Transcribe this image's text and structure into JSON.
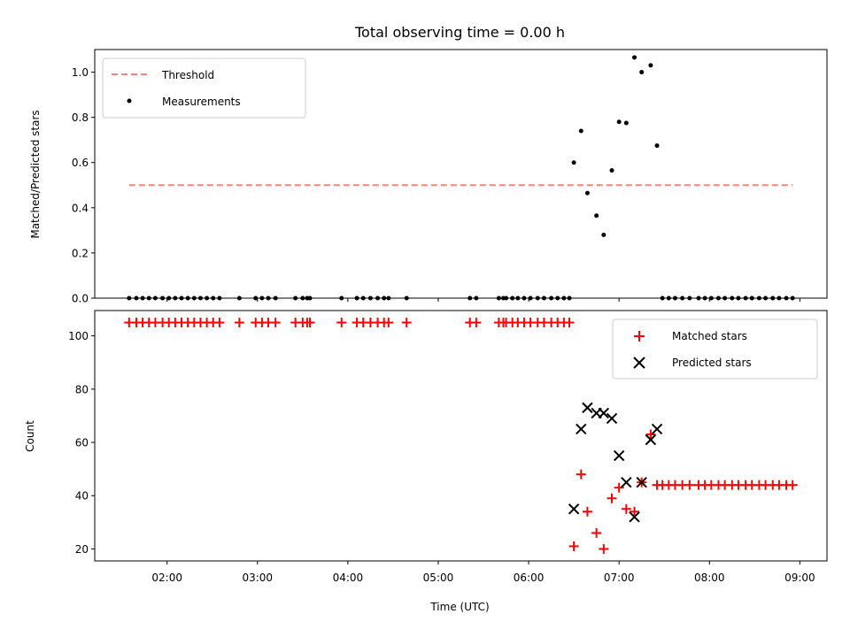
{
  "chart_data": {
    "title": "Total observing time = 0.00 h",
    "xlabel": "Time (UTC)",
    "xticks": [
      "02:00",
      "03:00",
      "04:00",
      "05:00",
      "06:00",
      "07:00",
      "08:00",
      "09:00"
    ],
    "xlim_hours": [
      1.2,
      9.3
    ],
    "panels": [
      {
        "type": "scatter",
        "ylabel": "Matched/Predicted stars",
        "ylim": [
          0.0,
          1.1
        ],
        "yticks": [
          "0.0",
          "0.2",
          "0.4",
          "0.6",
          "0.8",
          "1.0"
        ],
        "ytick_values": [
          0.0,
          0.2,
          0.4,
          0.6,
          0.8,
          1.0
        ],
        "legend_position": "upper-left",
        "threshold": {
          "name": "Threshold",
          "value": 0.5,
          "x_range_hours": [
            1.58,
            8.92
          ],
          "color": "#ff7f7f"
        },
        "series": [
          {
            "name": "Measurements",
            "marker": "dot",
            "color": "#000000",
            "x_hours": [
              1.58,
              1.66,
              1.73,
              1.8,
              1.87,
              1.95,
              2.02,
              2.09,
              2.16,
              2.23,
              2.3,
              2.37,
              2.44,
              2.51,
              2.58,
              2.8,
              2.98,
              3.05,
              3.12,
              3.2,
              3.42,
              3.5,
              3.55,
              3.58,
              3.93,
              4.1,
              4.17,
              4.25,
              4.33,
              4.4,
              4.45,
              4.65,
              5.35,
              5.42,
              5.67,
              5.72,
              5.75,
              5.82,
              5.88,
              5.95,
              6.02,
              6.1,
              6.17,
              6.25,
              6.32,
              6.39,
              6.45,
              6.5,
              6.58,
              6.65,
              6.75,
              6.83,
              6.92,
              7.0,
              7.08,
              7.17,
              7.25,
              7.35,
              7.42,
              7.48,
              7.55,
              7.62,
              7.7,
              7.78,
              7.88,
              7.95,
              8.02,
              8.1,
              8.17,
              8.25,
              8.32,
              8.4,
              8.47,
              8.55,
              8.62,
              8.7,
              8.77,
              8.85,
              8.92
            ],
            "y": [
              0,
              0,
              0,
              0,
              0,
              0,
              0,
              0,
              0,
              0,
              0,
              0,
              0,
              0,
              0,
              0,
              0,
              0,
              0,
              0,
              0,
              0,
              0,
              0,
              0,
              0,
              0,
              0,
              0,
              0,
              0,
              0,
              0,
              0,
              0,
              0,
              0,
              0,
              0,
              0,
              0,
              0,
              0,
              0,
              0,
              0,
              0,
              0.6,
              0.74,
              0.465,
              0.365,
              0.28,
              0.565,
              0.78,
              0.775,
              1.065,
              1.0,
              1.03,
              0.675,
              0,
              0,
              0,
              0,
              0,
              0,
              0,
              0,
              0,
              0,
              0,
              0,
              0,
              0,
              0,
              0,
              0,
              0,
              0,
              0
            ]
          }
        ]
      },
      {
        "type": "scatter",
        "ylabel": "Count",
        "ylim": [
          15.5,
          109.5
        ],
        "yticks": [
          "20",
          "40",
          "60",
          "80",
          "100"
        ],
        "ytick_values": [
          20,
          40,
          60,
          80,
          100
        ],
        "legend_position": "upper-right",
        "series": [
          {
            "name": "Matched stars",
            "marker": "plus",
            "color": "#ff0000",
            "x_hours": [
              1.58,
              1.66,
              1.73,
              1.8,
              1.87,
              1.95,
              2.02,
              2.09,
              2.16,
              2.23,
              2.3,
              2.37,
              2.44,
              2.51,
              2.58,
              2.8,
              2.98,
              3.05,
              3.12,
              3.2,
              3.42,
              3.5,
              3.55,
              3.58,
              3.93,
              4.1,
              4.17,
              4.25,
              4.33,
              4.4,
              4.45,
              4.65,
              5.35,
              5.42,
              5.67,
              5.72,
              5.75,
              5.82,
              5.88,
              5.95,
              6.02,
              6.1,
              6.17,
              6.25,
              6.32,
              6.39,
              6.45,
              6.5,
              6.58,
              6.65,
              6.75,
              6.83,
              6.92,
              7.0,
              7.08,
              7.17,
              7.25,
              7.35,
              7.42,
              7.48,
              7.55,
              7.62,
              7.7,
              7.78,
              7.88,
              7.95,
              8.02,
              8.1,
              8.17,
              8.25,
              8.32,
              8.4,
              8.47,
              8.55,
              8.62,
              8.7,
              8.77,
              8.85,
              8.92
            ],
            "y": [
              105,
              105,
              105,
              105,
              105,
              105,
              105,
              105,
              105,
              105,
              105,
              105,
              105,
              105,
              105,
              105,
              105,
              105,
              105,
              105,
              105,
              105,
              105,
              105,
              105,
              105,
              105,
              105,
              105,
              105,
              105,
              105,
              105,
              105,
              105,
              105,
              105,
              105,
              105,
              105,
              105,
              105,
              105,
              105,
              105,
              105,
              105,
              21,
              48,
              34,
              26,
              20,
              39,
              43,
              35,
              34,
              45,
              63,
              44,
              44,
              44,
              44,
              44,
              44,
              44,
              44,
              44,
              44,
              44,
              44,
              44,
              44,
              44,
              44,
              44,
              44,
              44,
              44,
              44
            ]
          },
          {
            "name": "Predicted stars",
            "marker": "x",
            "color": "#000000",
            "x_hours": [
              6.5,
              6.58,
              6.65,
              6.75,
              6.83,
              6.92,
              7.0,
              7.08,
              7.17,
              7.25,
              7.35,
              7.42
            ],
            "y": [
              35,
              65,
              73,
              71,
              71,
              69,
              55,
              45,
              32,
              45,
              61,
              65
            ]
          }
        ]
      }
    ]
  }
}
